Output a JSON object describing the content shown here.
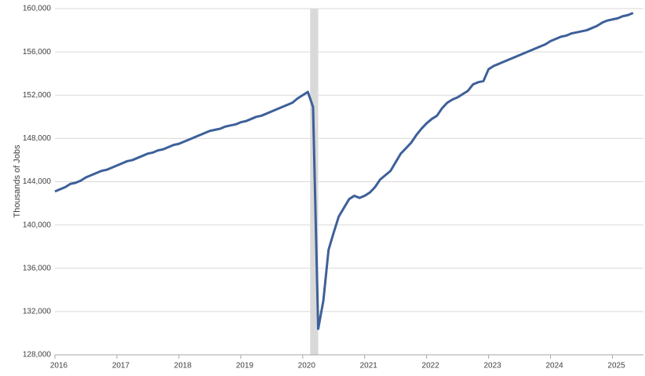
{
  "chart_data": {
    "type": "line",
    "y_label": "Thousands of Jobs",
    "color": "#3d6099",
    "grid": true,
    "shaded_region": {
      "start": 2020.12,
      "end": 2020.25,
      "color": "#d9d9d9"
    },
    "xlim": [
      2016,
      2025.5
    ],
    "xticks": [
      2016,
      2017,
      2018,
      2019,
      2020,
      2021,
      2022,
      2023,
      2024,
      2025
    ],
    "ylim": [
      128000,
      160000
    ],
    "yticks": [
      {
        "value": 128000,
        "label": "128,000"
      },
      {
        "value": 132000,
        "label": "132,000"
      },
      {
        "value": 136000,
        "label": "136,000"
      },
      {
        "value": 140000,
        "label": "140,000"
      },
      {
        "value": 144000,
        "label": "144,000"
      },
      {
        "value": 148000,
        "label": "148,000"
      },
      {
        "value": 152000,
        "label": "152,000"
      },
      {
        "value": 156000,
        "label": "156,000"
      },
      {
        "value": 160000,
        "label": "160,000"
      }
    ],
    "x": [
      2016,
      2016.083,
      2016.167,
      2016.25,
      2016.333,
      2016.417,
      2016.5,
      2016.583,
      2016.667,
      2016.75,
      2016.833,
      2016.917,
      2017,
      2017.083,
      2017.167,
      2017.25,
      2017.333,
      2017.417,
      2017.5,
      2017.583,
      2017.667,
      2017.75,
      2017.833,
      2017.917,
      2018,
      2018.083,
      2018.167,
      2018.25,
      2018.333,
      2018.417,
      2018.5,
      2018.583,
      2018.667,
      2018.75,
      2018.833,
      2018.917,
      2019,
      2019.083,
      2019.167,
      2019.25,
      2019.333,
      2019.417,
      2019.5,
      2019.583,
      2019.667,
      2019.75,
      2019.833,
      2019.917,
      2020,
      2020.083,
      2020.167,
      2020.25,
      2020.333,
      2020.417,
      2020.5,
      2020.583,
      2020.667,
      2020.75,
      2020.833,
      2020.917,
      2021,
      2021.083,
      2021.167,
      2021.25,
      2021.333,
      2021.417,
      2021.5,
      2021.583,
      2021.667,
      2021.75,
      2021.833,
      2021.917,
      2022,
      2022.083,
      2022.167,
      2022.25,
      2022.333,
      2022.417,
      2022.5,
      2022.583,
      2022.667,
      2022.75,
      2022.833,
      2022.917,
      2023,
      2023.083,
      2023.167,
      2023.25,
      2023.333,
      2023.417,
      2023.5,
      2023.583,
      2023.667,
      2023.75,
      2023.833,
      2023.917,
      2024,
      2024.083,
      2024.167,
      2024.25,
      2024.333,
      2024.417,
      2024.5,
      2024.583,
      2024.667,
      2024.75,
      2024.833,
      2024.917,
      2025,
      2025.083,
      2025.167,
      2025.25,
      2025.333
    ],
    "values": [
      143100,
      143300,
      143500,
      143800,
      143900,
      144100,
      144400,
      144600,
      144800,
      145000,
      145100,
      145300,
      145500,
      145700,
      145900,
      146000,
      146200,
      146400,
      146600,
      146700,
      146900,
      147000,
      147200,
      147400,
      147500,
      147700,
      147900,
      148100,
      148300,
      148500,
      148700,
      148800,
      148900,
      149100,
      149200,
      149300,
      149500,
      149600,
      149800,
      150000,
      150100,
      150300,
      150500,
      150700,
      150900,
      151100,
      151300,
      151700,
      152000,
      152300,
      150900,
      130400,
      133000,
      137700,
      139300,
      140800,
      141600,
      142400,
      142700,
      142500,
      142700,
      143000,
      143500,
      144200,
      144600,
      145000,
      145800,
      146600,
      147100,
      147600,
      148300,
      148900,
      149400,
      149800,
      150100,
      150800,
      151300,
      151600,
      151800,
      152100,
      152400,
      153000,
      153200,
      153300,
      154400,
      154700,
      154900,
      155100,
      155300,
      155500,
      155700,
      155900,
      156100,
      156300,
      156500,
      156700,
      157000,
      157200,
      157400,
      157500,
      157700,
      157800,
      157900,
      158000,
      158200,
      158400,
      158700,
      158900,
      159000,
      159100,
      159300,
      159400,
      159600
    ]
  }
}
